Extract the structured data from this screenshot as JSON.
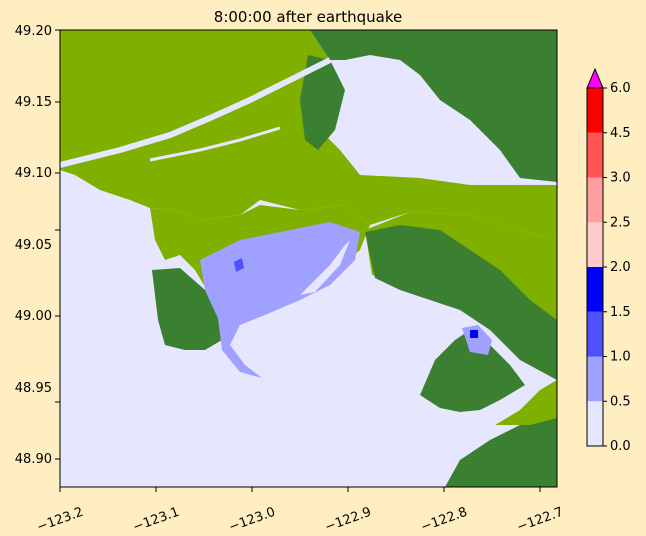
{
  "chart_data": {
    "type": "heatmap",
    "title": "8:00:00 after earthquake",
    "xlabel": "",
    "ylabel": "",
    "xlim": [
      -123.2,
      -122.69
    ],
    "ylim": [
      48.88,
      49.2
    ],
    "xticks": [
      "−123.2",
      "−123.1",
      "−123.0",
      "−122.9",
      "−122.8",
      "−122.7"
    ],
    "xtick_values": [
      -123.2,
      -123.1,
      -123.0,
      -122.9,
      -122.8,
      -122.7
    ],
    "yticks": [
      "48.90",
      "48.95",
      "49.00",
      "49.05",
      "49.10",
      "49.15",
      "49.20"
    ],
    "ytick_values": [
      48.9,
      48.95,
      49.0,
      49.05,
      49.1,
      49.15,
      49.2
    ],
    "colorbar": {
      "levels": [
        0.0,
        0.5,
        1.0,
        1.5,
        2.0,
        2.5,
        3.0,
        4.5,
        6.0
      ],
      "tick_labels": [
        "0.0",
        "0.5",
        "1.0",
        "1.5",
        "2.0",
        "2.5",
        "3.0",
        "4.5",
        "6.0"
      ],
      "colors": [
        "#e6e6ff",
        "#a0a0ff",
        "#5050ff",
        "#0000ff",
        "#ffcccc",
        "#ff9e9e",
        "#ff5555",
        "#ff0000"
      ],
      "over_color": "#ff00ff",
      "extend": "max"
    },
    "land_colors": {
      "lowland": "#7fb000",
      "upland": "#3a8030"
    }
  }
}
